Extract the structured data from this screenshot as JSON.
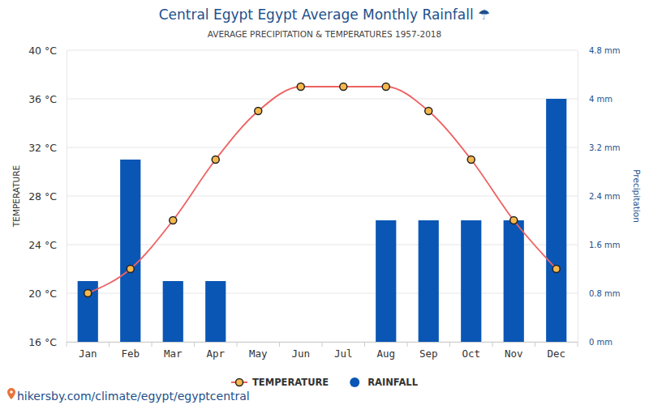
{
  "chart_data": {
    "type": "bar",
    "title": "Central Egypt Egypt Average Monthly Rainfall ☂",
    "subtitle": "AVERAGE PRECIPITATION & TEMPERATURES 1957-2018",
    "y_label": "TEMPERATURE",
    "y2_label": "Precipitation",
    "source": "hikersby.com/climate/egypt/egyptcentral",
    "categories": [
      "Jan",
      "Feb",
      "Mar",
      "Apr",
      "May",
      "Jun",
      "Jul",
      "Aug",
      "Sep",
      "Oct",
      "Nov",
      "Dec"
    ],
    "series": [
      {
        "name": "TEMPERATURE",
        "type": "line",
        "color": "#ee6262",
        "marker": "circle",
        "line_style": "solid",
        "values": [
          20,
          22,
          26,
          31,
          35,
          37,
          37,
          37,
          35,
          31,
          26,
          22
        ]
      },
      {
        "name": "RAINFALL",
        "type": "bar",
        "axis": "y2",
        "color": "#0a56b5",
        "values": [
          1,
          3,
          1,
          1,
          0,
          0,
          0,
          2,
          2,
          2,
          2,
          4
        ]
      }
    ],
    "ylim": [
      16,
      40
    ],
    "yticks": [
      {
        "value": 16,
        "label": "16 °C"
      },
      {
        "value": 20,
        "label": "20 °C"
      },
      {
        "value": 24,
        "label": "24 °C"
      },
      {
        "value": 28,
        "label": "28 °C"
      },
      {
        "value": 32,
        "label": "32 °C"
      },
      {
        "value": 36,
        "label": "36 °C"
      },
      {
        "value": 40,
        "label": "40 °C"
      }
    ],
    "y2lim": [
      0,
      4.8
    ],
    "y2ticks": [
      {
        "value": 0,
        "label": "0 mm"
      },
      {
        "value": 0.8,
        "label": "0.8 mm"
      },
      {
        "value": 1.6,
        "label": "1.6 mm"
      },
      {
        "value": 2.4,
        "label": "2.4 mm"
      },
      {
        "value": 3.2,
        "label": "3.2 mm"
      },
      {
        "value": 4,
        "label": "4 mm"
      },
      {
        "value": 4.8,
        "label": "4.8 mm"
      }
    ],
    "grid": true,
    "legend": "bottom"
  }
}
